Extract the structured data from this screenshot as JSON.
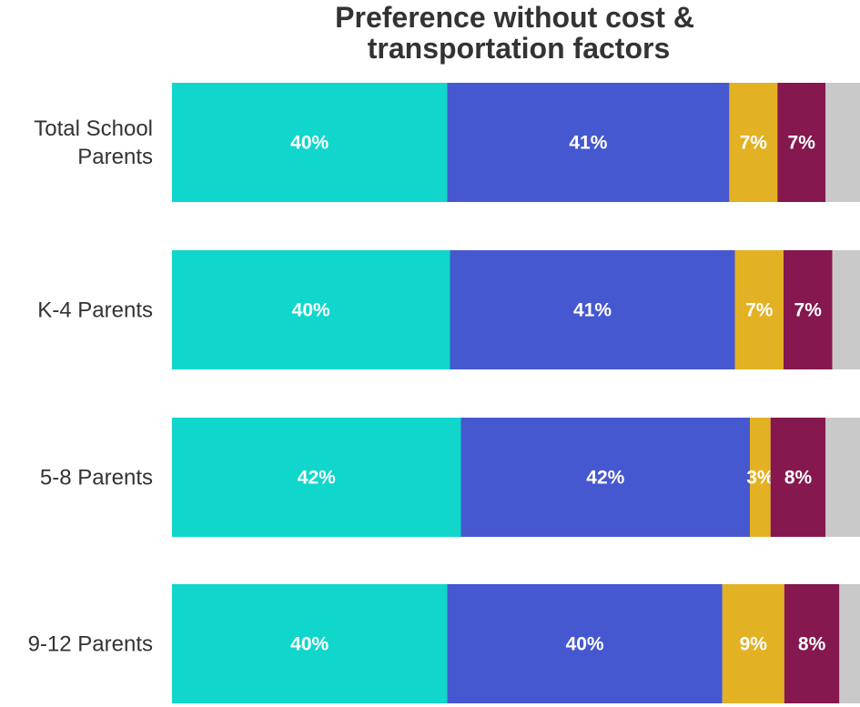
{
  "chart_data": {
    "type": "bar",
    "orientation": "horizontal",
    "stacked": true,
    "title": "Preference without cost & transportation factors",
    "title_lines": [
      "Preference without cost &",
      "transportation factors"
    ],
    "categories": [
      "Total School Parents",
      "K-4 Parents",
      "5-8 Parents",
      "9-12 Parents"
    ],
    "category_lines": [
      [
        "Total School",
        "Parents"
      ],
      [
        "K-4 Parents"
      ],
      [
        "5-8 Parents"
      ],
      [
        "9-12 Parents"
      ]
    ],
    "series": [
      {
        "color": "#10d6cc",
        "values": [
          40,
          40,
          42,
          40
        ],
        "labels": [
          "40%",
          "40%",
          "42%",
          "40%"
        ]
      },
      {
        "color": "#4658cf",
        "values": [
          41,
          41,
          42,
          40
        ],
        "labels": [
          "41%",
          "41%",
          "42%",
          "40%"
        ]
      },
      {
        "color": "#e3b124",
        "values": [
          7,
          7,
          3,
          9
        ],
        "labels": [
          "7%",
          "7%",
          "3%",
          "9%"
        ]
      },
      {
        "color": "#85184e",
        "values": [
          7,
          7,
          8,
          8
        ],
        "labels": [
          "7%",
          "7%",
          "8%",
          "8%"
        ]
      },
      {
        "color": "#c9c9c9",
        "values": [
          5,
          4,
          5,
          3
        ],
        "labels": [
          "",
          "",
          "",
          ""
        ]
      }
    ],
    "xlim": [
      0,
      100
    ],
    "grid": false,
    "legend": "none"
  }
}
